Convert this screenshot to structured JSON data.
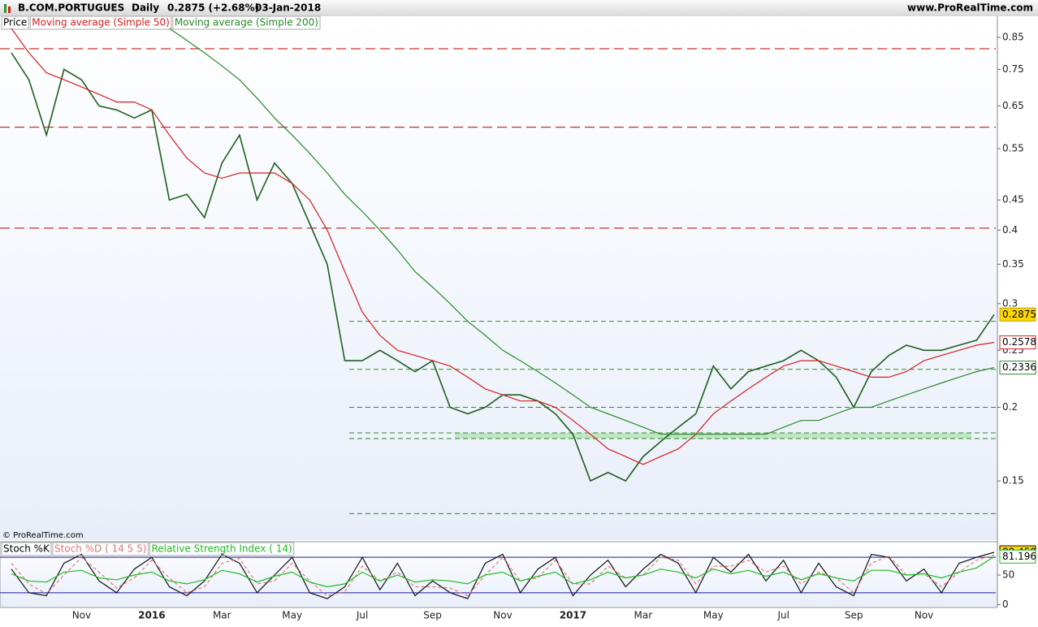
{
  "header": {
    "title": "B.COM.PORTUGUES",
    "interval": "Daily",
    "last": "0.2875 (+2.68%)",
    "date": "03-Jan-2018",
    "site": "www.ProRealTime.com",
    "copyright": "© ProRealTime.com"
  },
  "chart_data": [
    {
      "type": "line",
      "log_scale": true,
      "ylim": [
        0.119,
        0.923
      ],
      "yticks": [
        0.15,
        0.2,
        0.25,
        0.3,
        0.35,
        0.4,
        0.45,
        0.55,
        0.65,
        0.75,
        0.85
      ],
      "levels": [
        {
          "value": 0.813,
          "color": "#c00000"
        },
        {
          "value": 0.598,
          "color": "#c00000"
        },
        {
          "value": 0.403,
          "color": "#c00000"
        },
        {
          "value": 0.28,
          "color": "#2e8b2e"
        },
        {
          "value": 0.232,
          "color": "#2e8b2e"
        },
        {
          "value": 0.2,
          "color": "#2e8b2e"
        },
        {
          "value": 0.181,
          "color": "#2e8b2e"
        },
        {
          "value": 0.177,
          "color": "#2e8b2e"
        },
        {
          "value": 0.132,
          "color": "#2e8b2e"
        }
      ],
      "bands": [
        {
          "from": 0.177,
          "to": 0.181,
          "color": "#b5e3b5"
        }
      ],
      "series": [
        {
          "name": "Price",
          "color": "#1f5f1f",
          "label_fill": "#ffd700",
          "values": [
            0.8,
            0.72,
            0.58,
            0.75,
            0.72,
            0.65,
            0.64,
            0.62,
            0.64,
            0.45,
            0.46,
            0.42,
            0.52,
            0.58,
            0.45,
            0.52,
            0.48,
            0.41,
            0.35,
            0.24,
            0.24,
            0.25,
            0.24,
            0.23,
            0.24,
            0.2,
            0.195,
            0.2,
            0.21,
            0.21,
            0.205,
            0.195,
            0.18,
            0.15,
            0.155,
            0.15,
            0.165,
            0.175,
            0.185,
            0.195,
            0.235,
            0.215,
            0.23,
            0.235,
            0.24,
            0.25,
            0.24,
            0.225,
            0.2,
            0.23,
            0.245,
            0.255,
            0.25,
            0.25,
            0.255,
            0.26,
            0.2875
          ]
        },
        {
          "name": "Moving average (Simple 50)",
          "color": "#d42020",
          "label_fill": "#ffffff",
          "values": [
            0.88,
            0.8,
            0.74,
            0.72,
            0.7,
            0.68,
            0.66,
            0.66,
            0.64,
            0.58,
            0.53,
            0.5,
            0.49,
            0.5,
            0.5,
            0.5,
            0.48,
            0.45,
            0.4,
            0.34,
            0.29,
            0.265,
            0.25,
            0.245,
            0.24,
            0.235,
            0.225,
            0.215,
            0.21,
            0.205,
            0.205,
            0.2,
            0.19,
            0.18,
            0.17,
            0.165,
            0.16,
            0.165,
            0.17,
            0.18,
            0.195,
            0.205,
            0.215,
            0.225,
            0.235,
            0.24,
            0.24,
            0.235,
            0.23,
            0.225,
            0.225,
            0.23,
            0.24,
            0.245,
            0.25,
            0.255,
            0.2578
          ]
        },
        {
          "name": "Moving average (Simple 200)",
          "color": "#2a8a2a",
          "label_fill": "#ffffff",
          "values": [
            null,
            null,
            null,
            null,
            null,
            null,
            null,
            null,
            null,
            0.88,
            0.84,
            0.8,
            0.76,
            0.72,
            0.67,
            0.62,
            0.58,
            0.54,
            0.5,
            0.46,
            0.43,
            0.4,
            0.37,
            0.34,
            0.32,
            0.3,
            0.28,
            0.265,
            0.25,
            0.24,
            0.23,
            0.22,
            0.21,
            0.2,
            0.195,
            0.19,
            0.185,
            0.18,
            0.18,
            0.18,
            0.18,
            0.18,
            0.18,
            0.18,
            0.185,
            0.19,
            0.19,
            0.195,
            0.2,
            0.2,
            0.205,
            0.21,
            0.215,
            0.22,
            0.225,
            0.23,
            0.2336
          ]
        }
      ]
    },
    {
      "type": "line",
      "categories": [
        null,
        null,
        null,
        null,
        "Nov",
        null,
        null,
        null,
        "2016",
        null,
        null,
        null,
        "Mar",
        null,
        null,
        null,
        "May",
        null,
        null,
        null,
        "Jul",
        null,
        null,
        null,
        "Sep",
        null,
        null,
        null,
        "Nov",
        null,
        null,
        null,
        "2017",
        null,
        null,
        null,
        "Mar",
        null,
        null,
        null,
        "May",
        null,
        null,
        null,
        "Jul",
        null,
        null,
        null,
        "Sep",
        null,
        null,
        null,
        "Nov",
        null,
        null,
        null,
        null
      ],
      "ylim": [
        -5,
        105
      ],
      "yticks": [
        0,
        50
      ],
      "levels": [
        {
          "value": 80,
          "color": "#1a1aa0"
        },
        {
          "value": 20,
          "color": "#1a1aa0"
        }
      ],
      "series": [
        {
          "name": "Stoch %K",
          "color": "#111111",
          "label_fill": "#ffd700",
          "values": [
            60,
            20,
            15,
            70,
            85,
            40,
            20,
            60,
            80,
            30,
            15,
            40,
            85,
            70,
            20,
            50,
            80,
            20,
            10,
            30,
            80,
            25,
            70,
            15,
            40,
            20,
            10,
            70,
            85,
            20,
            60,
            80,
            15,
            50,
            75,
            30,
            60,
            85,
            70,
            20,
            80,
            55,
            85,
            40,
            75,
            20,
            70,
            30,
            15,
            85,
            80,
            40,
            60,
            20,
            70,
            80,
            88.45
          ],
          "value_labels": [
            null,
            null,
            null,
            null,
            null,
            null,
            null,
            null,
            null,
            null,
            null,
            null,
            null,
            null,
            null,
            null,
            null,
            null,
            null,
            null,
            null,
            null,
            null,
            null,
            null,
            null,
            null,
            null,
            null,
            null,
            null,
            null,
            null,
            null,
            null,
            null,
            null,
            null,
            null,
            null,
            null,
            null,
            null,
            null,
            null,
            null,
            null,
            null,
            null,
            null,
            null,
            null,
            null,
            null,
            null,
            null,
            "88.450"
          ]
        },
        {
          "name": "Stoch %D ( 14 5 5)",
          "color": "#e07878",
          "values": [
            70,
            35,
            18,
            50,
            80,
            55,
            28,
            45,
            75,
            45,
            20,
            30,
            70,
            78,
            35,
            40,
            70,
            40,
            15,
            22,
            65,
            40,
            55,
            30,
            30,
            28,
            15,
            50,
            80,
            40,
            45,
            75,
            35,
            35,
            65,
            45,
            50,
            80,
            75,
            35,
            65,
            65,
            75,
            55,
            65,
            35,
            55,
            45,
            20,
            70,
            82,
            50,
            52,
            30,
            55,
            75,
            84
          ]
        },
        {
          "name": "Relative Strength Index ( 14)",
          "color": "#22bb22",
          "label_fill": "#ffffff",
          "values": [
            52,
            40,
            38,
            55,
            58,
            45,
            42,
            50,
            55,
            40,
            35,
            42,
            58,
            52,
            38,
            48,
            55,
            38,
            30,
            35,
            55,
            40,
            50,
            38,
            42,
            40,
            35,
            50,
            55,
            40,
            48,
            55,
            35,
            42,
            55,
            45,
            50,
            60,
            55,
            45,
            60,
            52,
            58,
            48,
            55,
            42,
            52,
            45,
            40,
            58,
            58,
            50,
            52,
            45,
            55,
            62,
            81.196
          ]
        }
      ]
    }
  ]
}
